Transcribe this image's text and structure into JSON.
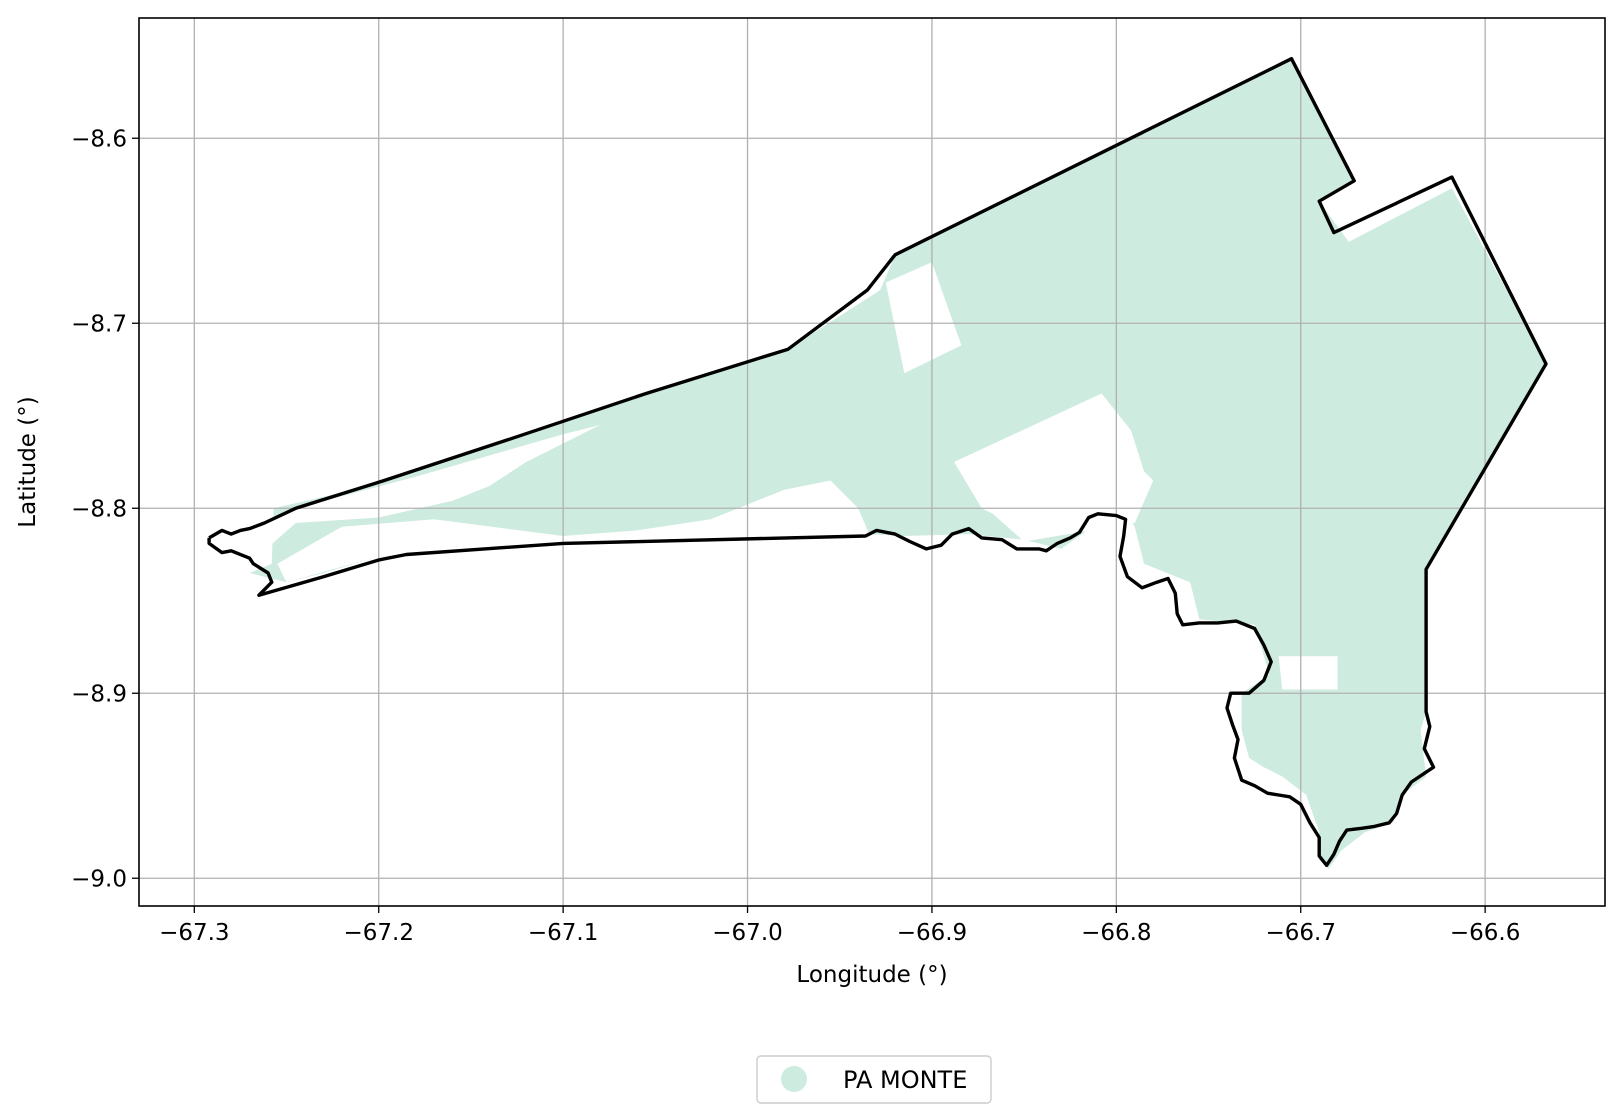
{
  "chart_data": {
    "type": "map",
    "xlabel": "Longitude (°)",
    "ylabel": "Latitude (°)",
    "xlim": [
      -67.33,
      -66.535
    ],
    "ylim": [
      -9.015,
      -8.535
    ],
    "grid": true,
    "legend_placement": "bottom-center",
    "xticks": [
      {
        "value": -67.3,
        "label": "−67.3"
      },
      {
        "value": -67.2,
        "label": "−67.2"
      },
      {
        "value": -67.1,
        "label": "−67.1"
      },
      {
        "value": -67.0,
        "label": "−67.0"
      },
      {
        "value": -66.9,
        "label": "−66.9"
      },
      {
        "value": -66.8,
        "label": "−66.8"
      },
      {
        "value": -66.7,
        "label": "−66.7"
      },
      {
        "value": -66.6,
        "label": "−66.6"
      }
    ],
    "yticks": [
      {
        "value": -8.6,
        "label": "−8.6"
      },
      {
        "value": -8.7,
        "label": "−8.7"
      },
      {
        "value": -8.8,
        "label": "−8.8"
      },
      {
        "value": -8.9,
        "label": "−8.9"
      },
      {
        "value": -9.0,
        "label": "−9.0"
      }
    ],
    "series": [
      {
        "name": "PA MONTE",
        "color": "#ceebdf",
        "role": "filled-area"
      },
      {
        "color": "#000000",
        "role": "boundary-outline"
      }
    ],
    "fill_polygon": [
      [
        -67.27,
        -8.835
      ],
      [
        -67.25,
        -8.84
      ],
      [
        -67.23,
        -8.835
      ],
      [
        -67.2,
        -8.826
      ],
      [
        -67.1,
        -8.82
      ],
      [
        -66.934,
        -8.814
      ],
      [
        -66.915,
        -8.815
      ],
      [
        -66.88,
        -8.814
      ],
      [
        -66.85,
        -8.817
      ],
      [
        -66.83,
        -8.822
      ],
      [
        -66.81,
        -8.808
      ],
      [
        -66.795,
        -8.803
      ],
      [
        -66.79,
        -8.81
      ],
      [
        -66.785,
        -8.83
      ],
      [
        -66.76,
        -8.84
      ],
      [
        -66.755,
        -8.86
      ],
      [
        -66.725,
        -8.863
      ],
      [
        -66.717,
        -8.89
      ],
      [
        -66.732,
        -8.9
      ],
      [
        -66.732,
        -8.92
      ],
      [
        -66.728,
        -8.935
      ],
      [
        -66.72,
        -8.94
      ],
      [
        -66.71,
        -8.945
      ],
      [
        -66.697,
        -8.955
      ],
      [
        -66.69,
        -8.975
      ],
      [
        -66.69,
        -8.99
      ],
      [
        -66.685,
        -8.995
      ],
      [
        -66.678,
        -8.985
      ],
      [
        -66.665,
        -8.975
      ],
      [
        -66.65,
        -8.97
      ],
      [
        -66.645,
        -8.955
      ],
      [
        -66.632,
        -8.945
      ],
      [
        -66.635,
        -8.92
      ],
      [
        -66.632,
        -8.91
      ],
      [
        -66.632,
        -8.833
      ],
      [
        -66.567,
        -8.722
      ],
      [
        -66.618,
        -8.627
      ],
      [
        -66.674,
        -8.656
      ],
      [
        -66.69,
        -8.634
      ],
      [
        -66.671,
        -8.623
      ],
      [
        -66.705,
        -8.557
      ],
      [
        -66.92,
        -8.663
      ],
      [
        -66.928,
        -8.682
      ],
      [
        -66.978,
        -8.714
      ],
      [
        -67.13,
        -8.763
      ],
      [
        -67.2,
        -8.787
      ],
      [
        -67.257,
        -8.8
      ],
      [
        -67.258,
        -8.83
      ]
    ],
    "fill_gaps": [
      [
        [
          -67.29,
          -8.82
        ],
        [
          -67.245,
          -8.8
        ],
        [
          -67.18,
          -8.783
        ],
        [
          -67.1,
          -8.76
        ],
        [
          -67.08,
          -8.755
        ],
        [
          -67.12,
          -8.775
        ],
        [
          -67.14,
          -8.788
        ],
        [
          -67.16,
          -8.796
        ],
        [
          -67.2,
          -8.805
        ],
        [
          -67.245,
          -8.808
        ],
        [
          -67.27,
          -8.83
        ]
      ],
      [
        [
          -67.255,
          -8.83
        ],
        [
          -67.22,
          -8.81
        ],
        [
          -67.17,
          -8.806
        ],
        [
          -67.1,
          -8.815
        ],
        [
          -67.06,
          -8.812
        ],
        [
          -67.02,
          -8.806
        ],
        [
          -66.98,
          -8.79
        ],
        [
          -66.955,
          -8.785
        ],
        [
          -66.94,
          -8.8
        ],
        [
          -66.934,
          -8.814
        ],
        [
          -67.1,
          -8.819
        ],
        [
          -67.2,
          -8.826
        ],
        [
          -67.25,
          -8.84
        ]
      ],
      [
        [
          -66.925,
          -8.678
        ],
        [
          -66.9,
          -8.667
        ],
        [
          -66.884,
          -8.712
        ],
        [
          -66.915,
          -8.727
        ]
      ],
      [
        [
          -66.888,
          -8.775
        ],
        [
          -66.808,
          -8.738
        ],
        [
          -66.792,
          -8.758
        ],
        [
          -66.785,
          -8.78
        ],
        [
          -66.78,
          -8.785
        ],
        [
          -66.79,
          -8.808
        ],
        [
          -66.85,
          -8.818
        ],
        [
          -66.867,
          -8.803
        ],
        [
          -66.873,
          -8.8
        ]
      ],
      [
        [
          -66.712,
          -8.88
        ],
        [
          -66.68,
          -8.88
        ],
        [
          -66.68,
          -8.898
        ],
        [
          -66.71,
          -8.898
        ]
      ]
    ],
    "outline": [
      [
        -67.292,
        -8.816
      ],
      [
        -67.285,
        -8.812
      ],
      [
        -67.28,
        -8.814
      ],
      [
        -67.275,
        -8.812
      ],
      [
        -67.27,
        -8.811
      ],
      [
        -67.262,
        -8.808
      ],
      [
        -67.245,
        -8.8
      ],
      [
        -67.2,
        -8.786
      ],
      [
        -67.13,
        -8.763
      ],
      [
        -67.055,
        -8.738
      ],
      [
        -66.978,
        -8.714
      ],
      [
        -66.935,
        -8.682
      ],
      [
        -66.92,
        -8.663
      ],
      [
        -66.705,
        -8.557
      ],
      [
        -66.671,
        -8.623
      ],
      [
        -66.69,
        -8.634
      ],
      [
        -66.682,
        -8.651
      ],
      [
        -66.618,
        -8.621
      ],
      [
        -66.567,
        -8.722
      ],
      [
        -66.632,
        -8.833
      ],
      [
        -66.632,
        -8.91
      ],
      [
        -66.63,
        -8.918
      ],
      [
        -66.633,
        -8.93
      ],
      [
        -66.628,
        -8.94
      ],
      [
        -66.64,
        -8.948
      ],
      [
        -66.645,
        -8.955
      ],
      [
        -66.648,
        -8.965
      ],
      [
        -66.652,
        -8.97
      ],
      [
        -66.66,
        -8.972
      ],
      [
        -66.667,
        -8.973
      ],
      [
        -66.675,
        -8.974
      ],
      [
        -66.679,
        -8.98
      ],
      [
        -66.682,
        -8.987
      ],
      [
        -66.686,
        -8.993
      ],
      [
        -66.69,
        -8.988
      ],
      [
        -66.69,
        -8.978
      ],
      [
        -66.695,
        -8.97
      ],
      [
        -66.7,
        -8.96
      ],
      [
        -66.706,
        -8.956
      ],
      [
        -66.712,
        -8.955
      ],
      [
        -66.718,
        -8.954
      ],
      [
        -66.725,
        -8.95
      ],
      [
        -66.732,
        -8.947
      ],
      [
        -66.736,
        -8.935
      ],
      [
        -66.734,
        -8.925
      ],
      [
        -66.737,
        -8.917
      ],
      [
        -66.74,
        -8.908
      ],
      [
        -66.738,
        -8.9
      ],
      [
        -66.728,
        -8.9
      ],
      [
        -66.72,
        -8.893
      ],
      [
        -66.716,
        -8.883
      ],
      [
        -66.72,
        -8.874
      ],
      [
        -66.725,
        -8.865
      ],
      [
        -66.735,
        -8.861
      ],
      [
        -66.745,
        -8.862
      ],
      [
        -66.755,
        -8.862
      ],
      [
        -66.764,
        -8.863
      ],
      [
        -66.767,
        -8.857
      ],
      [
        -66.768,
        -8.846
      ],
      [
        -66.772,
        -8.838
      ],
      [
        -66.778,
        -8.84
      ],
      [
        -66.786,
        -8.843
      ],
      [
        -66.794,
        -8.837
      ],
      [
        -66.798,
        -8.826
      ],
      [
        -66.796,
        -8.815
      ],
      [
        -66.795,
        -8.806
      ],
      [
        -66.8,
        -8.804
      ],
      [
        -66.81,
        -8.803
      ],
      [
        -66.815,
        -8.805
      ],
      [
        -66.82,
        -8.813
      ],
      [
        -66.825,
        -8.816
      ],
      [
        -66.832,
        -8.819
      ],
      [
        -66.838,
        -8.823
      ],
      [
        -66.842,
        -8.822
      ],
      [
        -66.854,
        -8.822
      ],
      [
        -66.862,
        -8.817
      ],
      [
        -66.873,
        -8.816
      ],
      [
        -66.88,
        -8.811
      ],
      [
        -66.889,
        -8.814
      ],
      [
        -66.895,
        -8.82
      ],
      [
        -66.903,
        -8.822
      ],
      [
        -66.912,
        -8.818
      ],
      [
        -66.92,
        -8.814
      ],
      [
        -66.93,
        -8.812
      ],
      [
        -66.936,
        -8.815
      ],
      [
        -67.1,
        -8.819
      ],
      [
        -67.185,
        -8.825
      ],
      [
        -67.2,
        -8.828
      ],
      [
        -67.23,
        -8.837
      ],
      [
        -67.265,
        -8.847
      ],
      [
        -67.258,
        -8.84
      ],
      [
        -67.26,
        -8.835
      ],
      [
        -67.268,
        -8.83
      ],
      [
        -67.27,
        -8.827
      ],
      [
        -67.28,
        -8.823
      ],
      [
        -67.285,
        -8.824
      ],
      [
        -67.292,
        -8.819
      ],
      [
        -67.292,
        -8.816
      ]
    ]
  },
  "legend": {
    "items": [
      {
        "label": "PA MONTE",
        "color": "#ceebdf"
      }
    ]
  }
}
